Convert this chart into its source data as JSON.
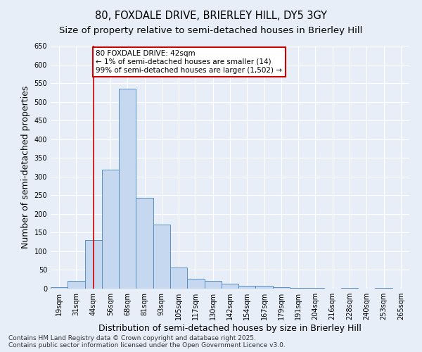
{
  "title_line1": "80, FOXDALE DRIVE, BRIERLEY HILL, DY5 3GY",
  "title_line2": "Size of property relative to semi-detached houses in Brierley Hill",
  "xlabel": "Distribution of semi-detached houses by size in Brierley Hill",
  "ylabel": "Number of semi-detached properties",
  "footnote": "Contains HM Land Registry data © Crown copyright and database right 2025.\nContains public sector information licensed under the Open Government Licence v3.0.",
  "categories": [
    "19sqm",
    "31sqm",
    "44sqm",
    "56sqm",
    "68sqm",
    "81sqm",
    "93sqm",
    "105sqm",
    "117sqm",
    "130sqm",
    "142sqm",
    "154sqm",
    "167sqm",
    "179sqm",
    "191sqm",
    "204sqm",
    "216sqm",
    "228sqm",
    "240sqm",
    "253sqm",
    "265sqm"
  ],
  "values": [
    3,
    20,
    130,
    318,
    535,
    243,
    172,
    57,
    27,
    20,
    14,
    8,
    8,
    3,
    1,
    1,
    0,
    1,
    0,
    1,
    0
  ],
  "bar_color": "#c5d8f0",
  "bar_edge_color": "#5a8fc3",
  "property_bin_index": 2,
  "annotation_text": "80 FOXDALE DRIVE: 42sqm\n← 1% of semi-detached houses are smaller (14)\n99% of semi-detached houses are larger (1,502) →",
  "annotation_box_color": "#ffffff",
  "annotation_box_edge": "#cc0000",
  "vline_color": "#cc0000",
  "ylim": [
    0,
    650
  ],
  "yticks": [
    0,
    50,
    100,
    150,
    200,
    250,
    300,
    350,
    400,
    450,
    500,
    550,
    600,
    650
  ],
  "background_color": "#e8eef8",
  "grid_color": "#ffffff",
  "title_fontsize": 10.5,
  "subtitle_fontsize": 9.5,
  "axis_label_fontsize": 9,
  "tick_fontsize": 7,
  "annot_fontsize": 7.5,
  "footnote_fontsize": 6.5
}
